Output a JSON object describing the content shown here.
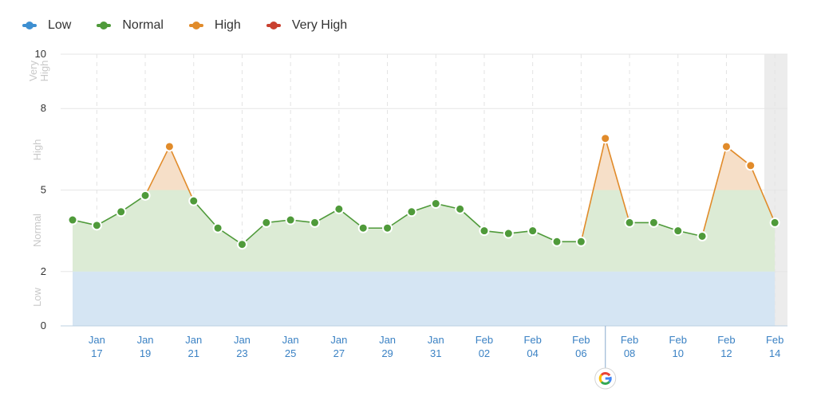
{
  "legend": [
    {
      "label": "Low",
      "color": "#3d8fd1"
    },
    {
      "label": "Normal",
      "color": "#4f9a3a"
    },
    {
      "label": "High",
      "color": "#e18b2a"
    },
    {
      "label": "Very High",
      "color": "#c9402f"
    }
  ],
  "chart_data": {
    "type": "area",
    "ylim": [
      0,
      10
    ],
    "yticks": [
      "0",
      "2",
      "5",
      "8",
      "10"
    ],
    "bands": [
      {
        "label": "Low",
        "from": 0,
        "to": 2,
        "color": "#d5e5f3"
      },
      {
        "label": "Normal",
        "from": 2,
        "to": 5,
        "color": "#dcebd5"
      },
      {
        "label": "High",
        "from": 5,
        "to": 8,
        "color": "#f6dfc8"
      },
      {
        "label": "Very High",
        "from": 8,
        "to": 10,
        "color": "#f3d6d3"
      }
    ],
    "x_tick_labels": [
      {
        "month": "Jan",
        "day": "17"
      },
      {
        "month": "Jan",
        "day": "19"
      },
      {
        "month": "Jan",
        "day": "21"
      },
      {
        "month": "Jan",
        "day": "23"
      },
      {
        "month": "Jan",
        "day": "25"
      },
      {
        "month": "Jan",
        "day": "27"
      },
      {
        "month": "Jan",
        "day": "29"
      },
      {
        "month": "Jan",
        "day": "31"
      },
      {
        "month": "Feb",
        "day": "02"
      },
      {
        "month": "Feb",
        "day": "04"
      },
      {
        "month": "Feb",
        "day": "06"
      },
      {
        "month": "Feb",
        "day": "08"
      },
      {
        "month": "Feb",
        "day": "10"
      },
      {
        "month": "Feb",
        "day": "12"
      },
      {
        "month": "Feb",
        "day": "14"
      }
    ],
    "x": [
      "Jan 16",
      "Jan 17",
      "Jan 18",
      "Jan 19",
      "Jan 20",
      "Jan 21",
      "Jan 22",
      "Jan 23",
      "Jan 24",
      "Jan 25",
      "Jan 26",
      "Jan 27",
      "Jan 28",
      "Jan 29",
      "Jan 30",
      "Jan 31",
      "Feb 01",
      "Feb 02",
      "Feb 03",
      "Feb 04",
      "Feb 05",
      "Feb 06",
      "Feb 07",
      "Feb 08",
      "Feb 09",
      "Feb 10",
      "Feb 11",
      "Feb 12",
      "Feb 13",
      "Feb 14"
    ],
    "values": [
      3.9,
      3.7,
      4.2,
      4.8,
      6.6,
      4.6,
      3.6,
      3.0,
      3.8,
      3.9,
      3.8,
      4.3,
      3.6,
      3.6,
      4.2,
      4.5,
      4.3,
      3.5,
      3.4,
      3.5,
      3.1,
      3.1,
      6.9,
      3.8,
      3.8,
      3.5,
      3.3,
      6.6,
      5.9,
      3.8
    ],
    "annotation": {
      "at": "Feb 07",
      "icon": "google-icon"
    },
    "grid": true
  }
}
